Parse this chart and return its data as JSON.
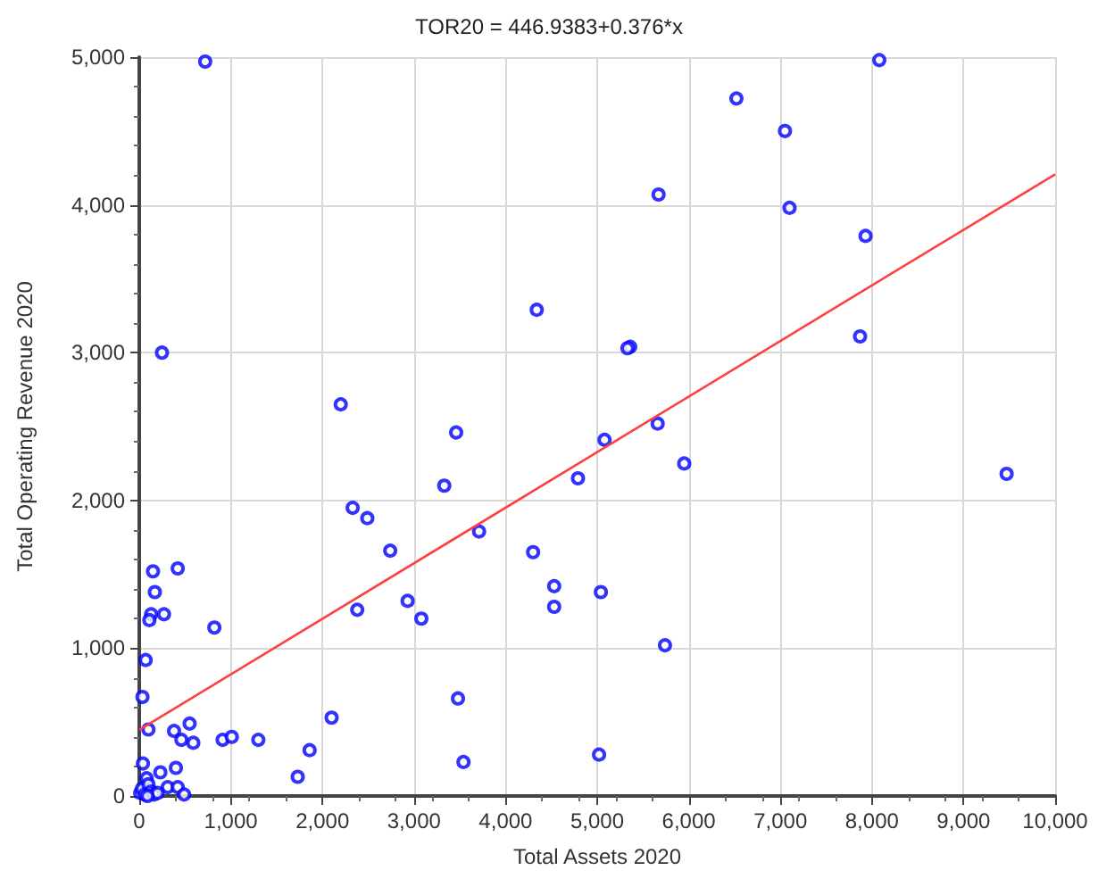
{
  "chart_data": {
    "type": "scatter",
    "title": "TOR20 = 446.9383+0.376*x",
    "xlabel": "Total Assets 2020",
    "ylabel": "Total Operating Revenue 2020",
    "xlim": [
      0,
      10000
    ],
    "ylim": [
      0,
      5000
    ],
    "xticks": [
      {
        "value": 0,
        "label": "0"
      },
      {
        "value": 1000,
        "label": "1,000"
      },
      {
        "value": 2000,
        "label": "2,000"
      },
      {
        "value": 3000,
        "label": "3,000"
      },
      {
        "value": 4000,
        "label": "4,000"
      },
      {
        "value": 5000,
        "label": "5,000"
      },
      {
        "value": 6000,
        "label": "6,000"
      },
      {
        "value": 7000,
        "label": "7,000"
      },
      {
        "value": 8000,
        "label": "8,000"
      },
      {
        "value": 9000,
        "label": "9,000"
      },
      {
        "value": 10000,
        "label": "10,000"
      }
    ],
    "yticks": [
      {
        "value": 0,
        "label": "0"
      },
      {
        "value": 1000,
        "label": "1,000"
      },
      {
        "value": 2000,
        "label": "2,000"
      },
      {
        "value": 3000,
        "label": "3,000"
      },
      {
        "value": 4000,
        "label": "4,000"
      },
      {
        "value": 5000,
        "label": "5,000"
      }
    ],
    "grid": true,
    "series": [
      {
        "color": "#0000ff",
        "marker": "circle",
        "x": [
          720,
          8080,
          6520,
          7050,
          5670,
          7100,
          7930,
          7870,
          5360,
          248,
          4340,
          2200,
          3460,
          3330,
          2330,
          2490,
          4790,
          5080,
          3710,
          2740,
          4300,
          5330,
          5660,
          5950,
          9470,
          4530,
          4530,
          5040,
          5740,
          3480,
          3540,
          5020,
          150,
          420,
          170,
          130,
          270,
          110,
          820,
          70,
          35,
          100,
          380,
          550,
          460,
          590,
          910,
          1010,
          1300,
          2100,
          1860,
          1730,
          40,
          400,
          230,
          80,
          310,
          420,
          490,
          2380,
          2930,
          3080,
          10,
          30,
          60,
          100,
          130,
          160,
          200,
          90
        ],
        "values": [
          4970,
          4980,
          4720,
          4500,
          4070,
          3980,
          3790,
          3110,
          3040,
          3000,
          3290,
          2650,
          2460,
          2100,
          1950,
          1880,
          2150,
          2410,
          1790,
          1660,
          1650,
          3030,
          2520,
          2250,
          2180,
          1420,
          1280,
          1380,
          1020,
          660,
          230,
          280,
          1520,
          1540,
          1380,
          1230,
          1230,
          1190,
          1140,
          920,
          670,
          450,
          440,
          490,
          380,
          360,
          380,
          400,
          380,
          530,
          310,
          130,
          220,
          190,
          160,
          120,
          60,
          60,
          10,
          1260,
          1320,
          1200,
          20,
          50,
          10,
          80,
          30,
          10,
          20,
          0
        ]
      },
      {
        "type": "line",
        "color": "#ff4040",
        "marker": "none",
        "x": [
          0,
          10000
        ],
        "values": [
          447,
          4207
        ]
      }
    ]
  }
}
